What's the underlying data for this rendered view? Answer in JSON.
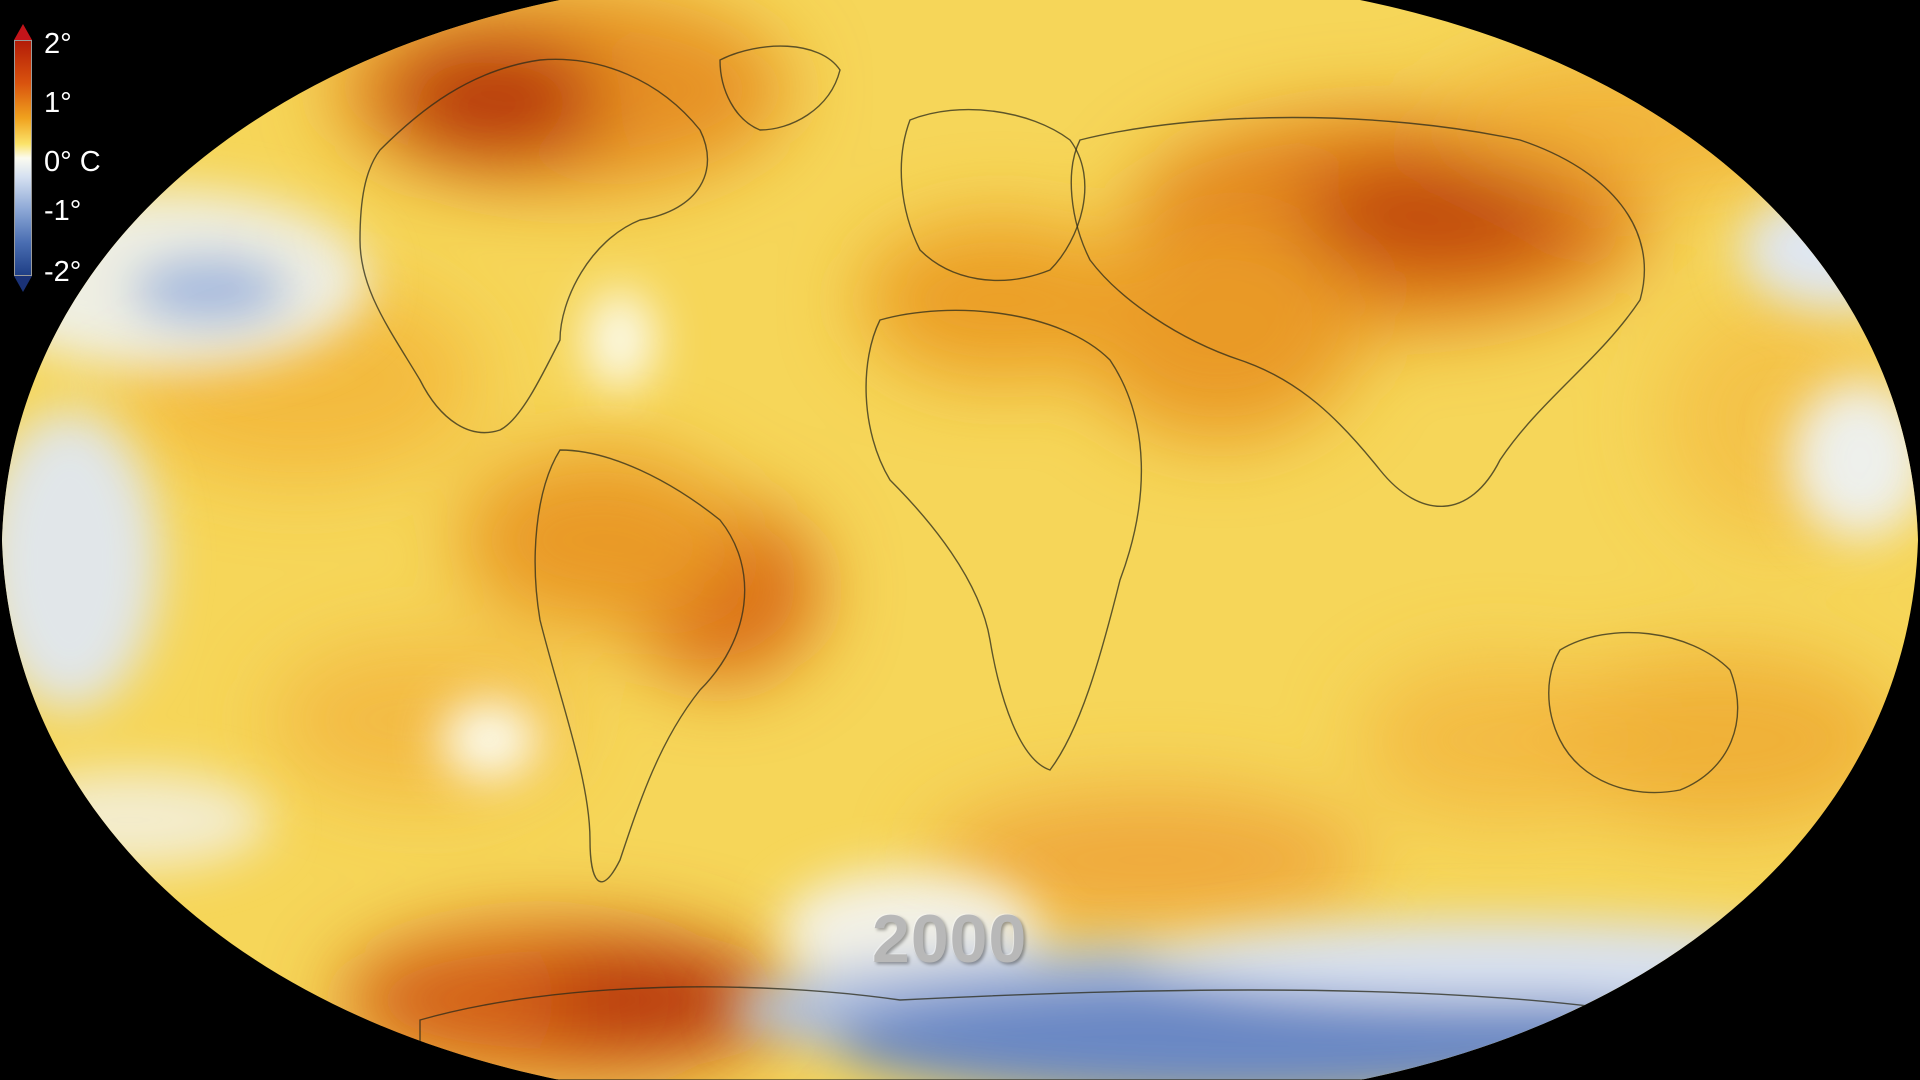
{
  "legend": {
    "ticks": [
      "2°",
      "1°",
      "0° C",
      "-1°",
      "-2°"
    ],
    "scale_min": -2,
    "scale_max": 2,
    "colors": {
      "max": "#b31c08",
      "mid_warm": "#f0a21e",
      "zero": "#fbfbef",
      "mid_cool": "#8da8d6",
      "min": "#1f3f86"
    }
  },
  "map": {
    "projection": "Robinson",
    "base_color": "#f6d659",
    "background_color": "#000000",
    "border_color": "#2a2a1a"
  },
  "year": "2000"
}
